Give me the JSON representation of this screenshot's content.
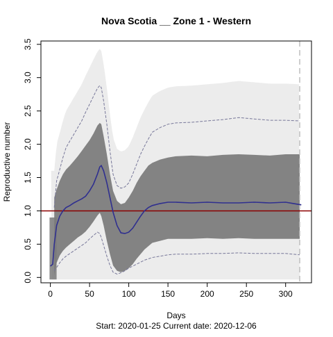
{
  "chart_data": {
    "type": "line",
    "title": "Nova Scotia __ Zone 1 - Western",
    "xlabel": "Days",
    "ylabel": "Reproductive number",
    "footer": "Start:  2020-01-25    Current date:  2020-12-06",
    "xlim": [
      -12,
      333
    ],
    "ylim": [
      -0.08,
      3.55
    ],
    "xticks": [
      0,
      50,
      100,
      150,
      200,
      250,
      300
    ],
    "yticks": [
      0.0,
      0.5,
      1.0,
      1.5,
      2.0,
      2.5,
      3.0,
      3.5
    ],
    "xtick_labels": [
      "0",
      "50",
      "100",
      "150",
      "200",
      "250",
      "300"
    ],
    "ytick_labels": [
      "0.0",
      "0.5",
      "1.0",
      "1.5",
      "2.0",
      "2.5",
      "3.0",
      "3.5"
    ],
    "reference_line": {
      "y": 1.0,
      "color": "#8b0000"
    },
    "current_day_marker": {
      "x": 318,
      "color": "#bebebe",
      "style": "dashed"
    },
    "colors": {
      "mean": "#2f2f8f",
      "band": "#7a7a7a",
      "interval": "#777799",
      "cloud": "#e6e6e6"
    },
    "series": [
      {
        "role": "mean",
        "x": [
          0,
          3,
          5,
          8,
          12,
          16,
          20,
          25,
          30,
          35,
          40,
          45,
          50,
          55,
          60,
          63,
          65,
          68,
          72,
          76,
          80,
          85,
          90,
          95,
          100,
          105,
          110,
          115,
          120,
          125,
          130,
          140,
          150,
          160,
          180,
          200,
          220,
          240,
          260,
          280,
          300,
          310,
          320
        ],
        "y": [
          0.17,
          0.2,
          0.5,
          0.78,
          0.92,
          1.0,
          1.05,
          1.08,
          1.12,
          1.15,
          1.18,
          1.22,
          1.3,
          1.4,
          1.55,
          1.66,
          1.68,
          1.6,
          1.42,
          1.2,
          0.98,
          0.78,
          0.67,
          0.66,
          0.68,
          0.74,
          0.83,
          0.92,
          1.0,
          1.05,
          1.08,
          1.11,
          1.13,
          1.13,
          1.12,
          1.13,
          1.12,
          1.12,
          1.13,
          1.12,
          1.13,
          1.11,
          1.09
        ]
      },
      {
        "role": "interval-upper",
        "x": [
          5,
          8,
          12,
          16,
          20,
          25,
          30,
          35,
          40,
          45,
          50,
          55,
          60,
          63,
          65,
          68,
          72,
          76,
          80,
          85,
          90,
          95,
          100,
          105,
          110,
          115,
          120,
          125,
          130,
          140,
          150,
          160,
          180,
          200,
          220,
          240,
          260,
          280,
          300,
          318
        ],
        "y": [
          1.05,
          1.45,
          1.62,
          1.8,
          1.95,
          2.05,
          2.15,
          2.25,
          2.35,
          2.48,
          2.6,
          2.72,
          2.84,
          2.88,
          2.85,
          2.65,
          2.3,
          1.9,
          1.55,
          1.38,
          1.34,
          1.36,
          1.42,
          1.55,
          1.7,
          1.85,
          1.97,
          2.08,
          2.18,
          2.25,
          2.3,
          2.32,
          2.33,
          2.35,
          2.37,
          2.4,
          2.38,
          2.36,
          2.36,
          2.35
        ]
      },
      {
        "role": "interval-lower",
        "x": [
          5,
          8,
          12,
          16,
          20,
          25,
          30,
          35,
          40,
          45,
          50,
          55,
          60,
          63,
          65,
          68,
          72,
          76,
          80,
          85,
          90,
          95,
          100,
          105,
          110,
          115,
          120,
          125,
          130,
          140,
          150,
          160,
          180,
          200,
          220,
          240,
          260,
          280,
          300,
          318
        ],
        "y": [
          0.1,
          0.15,
          0.22,
          0.28,
          0.32,
          0.36,
          0.4,
          0.44,
          0.48,
          0.52,
          0.58,
          0.63,
          0.68,
          0.66,
          0.6,
          0.48,
          0.32,
          0.18,
          0.08,
          0.05,
          0.07,
          0.1,
          0.14,
          0.17,
          0.2,
          0.23,
          0.26,
          0.28,
          0.3,
          0.32,
          0.34,
          0.35,
          0.35,
          0.36,
          0.36,
          0.37,
          0.36,
          0.36,
          0.36,
          0.34
        ]
      },
      {
        "role": "band-upper",
        "x": [
          5,
          8,
          12,
          16,
          20,
          25,
          30,
          35,
          40,
          45,
          50,
          55,
          60,
          63,
          65,
          68,
          72,
          76,
          80,
          85,
          90,
          95,
          100,
          105,
          110,
          115,
          120,
          125,
          130,
          140,
          150,
          160,
          180,
          200,
          220,
          240,
          260,
          280,
          300,
          318
        ],
        "y": [
          1.2,
          1.32,
          1.45,
          1.55,
          1.62,
          1.68,
          1.75,
          1.82,
          1.9,
          1.98,
          2.06,
          2.16,
          2.28,
          2.32,
          2.3,
          2.12,
          1.85,
          1.55,
          1.3,
          1.15,
          1.1,
          1.12,
          1.2,
          1.3,
          1.42,
          1.52,
          1.6,
          1.68,
          1.72,
          1.77,
          1.8,
          1.82,
          1.83,
          1.82,
          1.84,
          1.85,
          1.84,
          1.83,
          1.85,
          1.85
        ]
      },
      {
        "role": "band-lower",
        "x": [
          5,
          8,
          12,
          16,
          20,
          25,
          30,
          35,
          40,
          45,
          50,
          55,
          60,
          63,
          65,
          68,
          72,
          76,
          80,
          85,
          90,
          95,
          100,
          105,
          110,
          115,
          120,
          125,
          130,
          140,
          150,
          160,
          180,
          200,
          220,
          240,
          260,
          280,
          300,
          318
        ],
        "y": [
          0.03,
          0.22,
          0.33,
          0.4,
          0.45,
          0.5,
          0.55,
          0.6,
          0.64,
          0.69,
          0.76,
          0.84,
          0.93,
          0.97,
          0.92,
          0.78,
          0.55,
          0.35,
          0.18,
          0.1,
          0.08,
          0.1,
          0.14,
          0.2,
          0.28,
          0.35,
          0.42,
          0.47,
          0.52,
          0.55,
          0.58,
          0.58,
          0.58,
          0.59,
          0.58,
          0.59,
          0.58,
          0.58,
          0.58,
          0.58
        ]
      }
    ]
  }
}
